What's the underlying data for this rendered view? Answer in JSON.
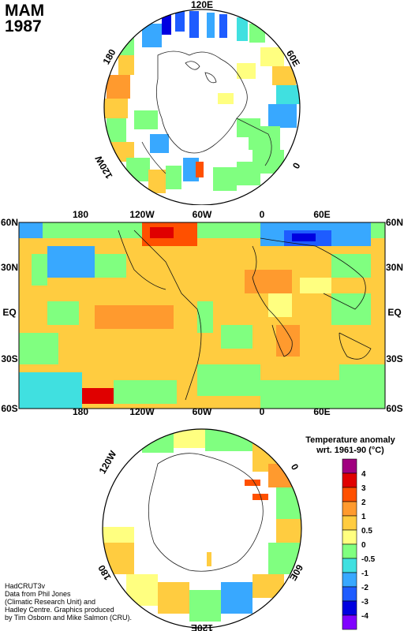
{
  "header": {
    "season": "MAM",
    "year": "1987"
  },
  "north_map": {
    "labels": [
      "120E",
      "60E",
      "0",
      "120W",
      "180"
    ]
  },
  "world_map": {
    "top_lon_labels": [
      "180",
      "120W",
      "60W",
      "0",
      "60E"
    ],
    "bottom_lon_labels": [
      "180",
      "120W",
      "60W",
      "0",
      "60E"
    ],
    "lat_labels": [
      "60N",
      "30N",
      "EQ",
      "30S",
      "60S"
    ]
  },
  "south_map": {
    "labels": [
      "120W",
      "0",
      "180",
      "60E",
      "120E"
    ]
  },
  "legend": {
    "title_line1": "Temperature anomaly",
    "title_line2": "wrt. 1961-90  (°C)",
    "ticks": [
      "4",
      "3",
      "2",
      "1",
      "0.5",
      "0",
      "-0.5",
      "-1",
      "-2",
      "-3",
      "-4"
    ],
    "colors": [
      "#a0007f",
      "#e00000",
      "#ff5000",
      "#ff9a2e",
      "#ffcc40",
      "#ffff80",
      "#80ff80",
      "#40e0e0",
      "#38a8ff",
      "#1e5cff",
      "#0000e0",
      "#8000ff"
    ]
  },
  "credits": {
    "line1": "HadCRUT3v",
    "line2": "Data from Phil Jones",
    "line3": "(Climatic Research Unit) and",
    "line4": "Hadley Centre.  Graphics produced",
    "line5": "by Tim Osborn and Mike Salmon (CRU)."
  }
}
